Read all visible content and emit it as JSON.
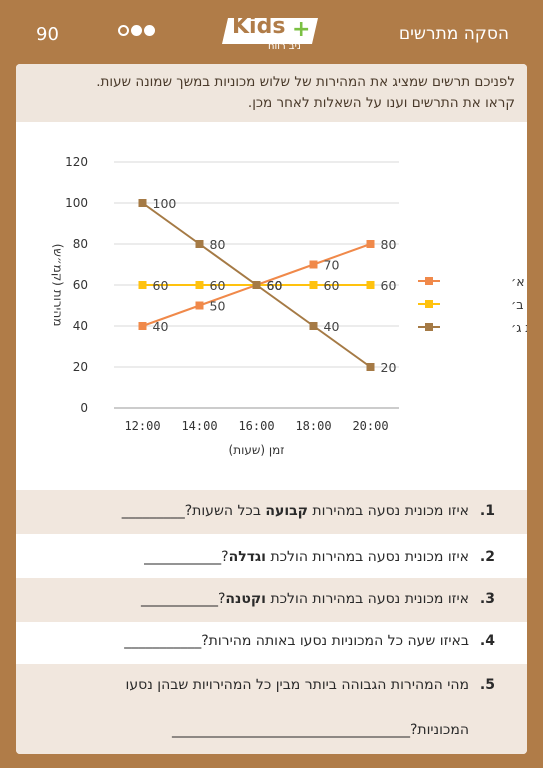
{
  "header": {
    "title": "הסקה מתרשים",
    "page_number": "90",
    "logo_word": "Kids",
    "logo_sub": "ניב רווח",
    "dots": [
      false,
      true,
      true
    ]
  },
  "intro": {
    "line1": "לפניכם תרשים שמציג את המהירות של שלוש מכוניות במשך שמונה שעות.",
    "line2": "קראו את התרשים וענו על השאלות לאחר מכן."
  },
  "chart_data": {
    "type": "line",
    "categories": [
      "12:00",
      "14:00",
      "16:00",
      "18:00",
      "20:00"
    ],
    "xlabel": "זמן (שעות)",
    "ylabel": "מהירות (קמ״ש)",
    "ylim": [
      0,
      120
    ],
    "yticks": [
      "0",
      "20",
      "40",
      "60",
      "80",
      "100",
      "120"
    ],
    "grid": true,
    "legend": "right",
    "series": [
      {
        "name": "מכונית א׳",
        "color": "#f0894a",
        "values": [
          40,
          50,
          60,
          70,
          80
        ]
      },
      {
        "name": "מכונית ב׳",
        "color": "#ffc20e",
        "values": [
          60,
          60,
          60,
          60,
          60
        ]
      },
      {
        "name": "מכונית ג׳",
        "color": "#a57a45",
        "values": [
          100,
          80,
          60,
          40,
          20
        ]
      }
    ]
  },
  "questions": [
    {
      "num": "1.",
      "pre": "איזו מכונית נסעה במהירות ",
      "bold": "קבועה",
      "post": " בכל השעות?_________",
      "shaded": true
    },
    {
      "num": "2.",
      "pre": "איזו מכונית נסעה במהירות הולכת ",
      "bold": "וגדלה",
      "post": "?___________",
      "shaded": false
    },
    {
      "num": "3.",
      "pre": "איזו מכונית נסעה במהירות הולכת ",
      "bold": "וקטנה",
      "post": "?___________",
      "shaded": true
    },
    {
      "num": "4.",
      "pre": "באיזו שעה כל המכוניות נסעו באותה מהירות?___________",
      "bold": "",
      "post": "",
      "shaded": false
    },
    {
      "num": "5.",
      "pre": "מהי המהירות הגבוהה ביותר מבין כל המהירויות שבהן נסעו",
      "bold": "",
      "post": "",
      "line2": "המכוניות?__________________________________",
      "shaded": true
    }
  ]
}
